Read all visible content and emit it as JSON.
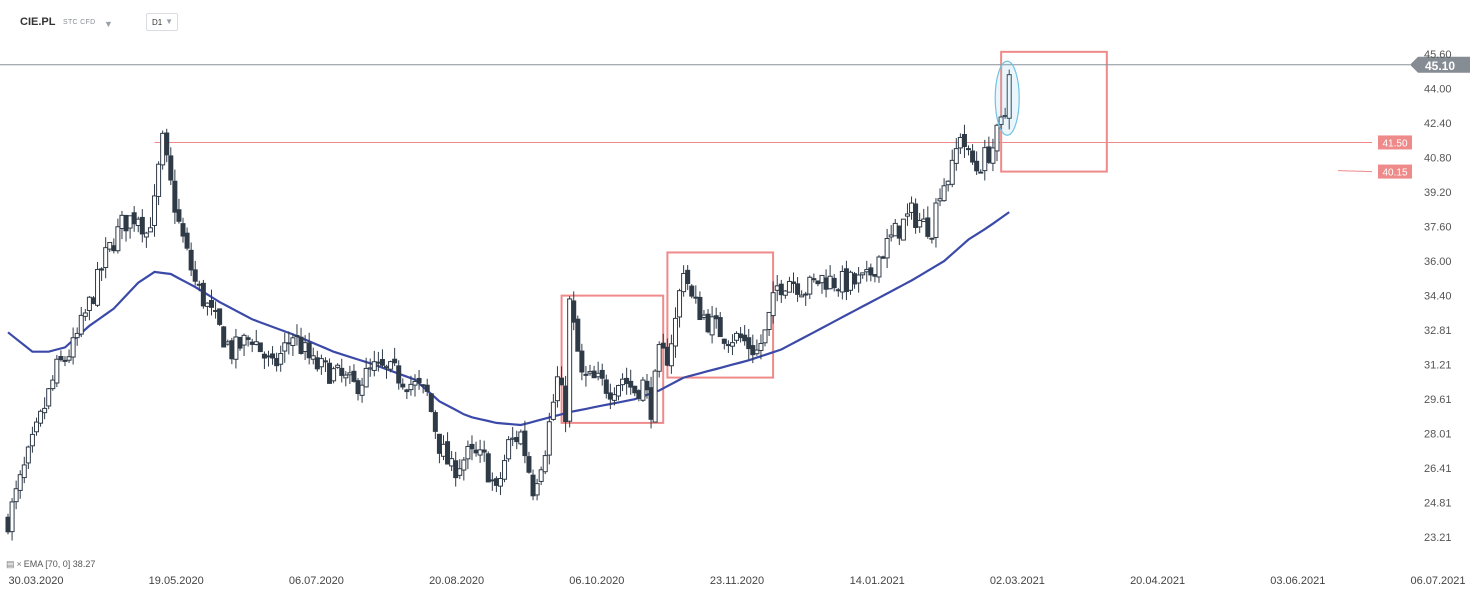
{
  "toolbar": {
    "symbol": "CIE.PL",
    "instrument_type": "STC CFD",
    "timeframe": "D1"
  },
  "indicator_legend": "EMA [70, 0] 38.27",
  "colors": {
    "candle": "#2f3a47",
    "ema": "#3b4aa8",
    "annotation": "#ef8a8a",
    "annotation_label_bg": "#ef8a8a",
    "ellipse": "#6fc3e3",
    "price_line": "#8a8f98",
    "price_tag_bg": "#868c94"
  },
  "chart_data": {
    "type": "candlestick",
    "timeframe": "D1",
    "x_tick_labels": [
      "30.03.2020",
      "19.05.2020",
      "06.07.2020",
      "20.08.2020",
      "06.10.2020",
      "23.11.2020",
      "14.01.2021",
      "02.03.2021",
      "20.04.2021",
      "03.06.2021",
      "06.07.2021"
    ],
    "y_tick_labels": [
      "45.60",
      "44.00",
      "42.40",
      "40.80",
      "39.20",
      "37.60",
      "36.00",
      "34.40",
      "32.81",
      "31.21",
      "29.61",
      "28.01",
      "26.41",
      "24.81",
      "23.21"
    ],
    "ylim": [
      23.21,
      45.6
    ],
    "last_price": 45.1,
    "last_price_label": "45.10",
    "horizontal_levels": [
      {
        "value": 41.5,
        "label": "41.50"
      },
      {
        "value": 40.15,
        "label": "40.15"
      }
    ],
    "ema": {
      "name": "EMA [70, 0]",
      "last_value": 38.27
    },
    "price_path": [
      [
        0,
        24.0
      ],
      [
        6,
        27.5
      ],
      [
        12,
        31.0
      ],
      [
        16,
        32.0
      ],
      [
        21,
        34.5
      ],
      [
        24,
        36.2
      ],
      [
        28,
        37.7
      ],
      [
        32,
        38.2
      ],
      [
        34,
        37.3
      ],
      [
        36,
        38.6
      ],
      [
        37,
        40.2
      ],
      [
        38,
        41.5
      ],
      [
        40,
        39.5
      ],
      [
        42,
        37.7
      ],
      [
        44,
        36.3
      ],
      [
        46,
        35.0
      ],
      [
        50,
        33.5
      ],
      [
        55,
        31.8
      ],
      [
        60,
        32.5
      ],
      [
        65,
        31.0
      ],
      [
        70,
        32.6
      ],
      [
        75,
        31.2
      ],
      [
        80,
        30.8
      ],
      [
        85,
        30.2
      ],
      [
        90,
        31.0
      ],
      [
        95,
        30.8
      ],
      [
        100,
        30.2
      ],
      [
        103,
        29.8
      ],
      [
        106,
        27.5
      ],
      [
        109,
        26.3
      ],
      [
        113,
        27.0
      ],
      [
        117,
        26.8
      ],
      [
        120,
        25.2
      ],
      [
        123,
        27.5
      ],
      [
        126,
        28.0
      ],
      [
        129,
        25.5
      ],
      [
        132,
        27.4
      ],
      [
        135,
        30.5
      ],
      [
        137,
        29.0
      ],
      [
        138,
        34.0
      ],
      [
        141,
        30.6
      ],
      [
        145,
        30.4
      ],
      [
        148,
        30.1
      ],
      [
        151,
        30.6
      ],
      [
        154,
        30.0
      ],
      [
        156,
        30.3
      ],
      [
        158,
        29.2
      ],
      [
        160,
        31.6
      ],
      [
        162,
        31.6
      ],
      [
        164,
        33.2
      ],
      [
        166,
        35.8
      ],
      [
        168,
        34.2
      ],
      [
        172,
        33.2
      ],
      [
        176,
        32.6
      ],
      [
        180,
        32.4
      ],
      [
        184,
        31.8
      ],
      [
        186,
        32.6
      ],
      [
        189,
        34.8
      ],
      [
        192,
        35.2
      ],
      [
        196,
        34.7
      ],
      [
        200,
        35.2
      ],
      [
        204,
        35.0
      ],
      [
        208,
        35.0
      ],
      [
        211,
        35.1
      ],
      [
        214,
        36.2
      ],
      [
        218,
        37.3
      ],
      [
        222,
        38.2
      ],
      [
        225,
        37.7
      ],
      [
        227,
        37.6
      ],
      [
        229,
        39.4
      ],
      [
        232,
        40.2
      ],
      [
        234,
        42.0
      ],
      [
        236,
        40.8
      ],
      [
        238,
        40.3
      ],
      [
        240,
        40.8
      ],
      [
        242,
        41.3
      ],
      [
        244,
        42.3
      ],
      [
        245,
        42.8
      ],
      [
        246,
        45.1
      ]
    ],
    "ema_path": [
      [
        0,
        32.7
      ],
      [
        6,
        31.8
      ],
      [
        10,
        31.8
      ],
      [
        14,
        32.0
      ],
      [
        20,
        33.0
      ],
      [
        26,
        33.8
      ],
      [
        32,
        35.0
      ],
      [
        36,
        35.5
      ],
      [
        40,
        35.4
      ],
      [
        46,
        34.8
      ],
      [
        52,
        34.1
      ],
      [
        60,
        33.3
      ],
      [
        70,
        32.6
      ],
      [
        80,
        31.8
      ],
      [
        90,
        31.2
      ],
      [
        100,
        30.5
      ],
      [
        106,
        29.5
      ],
      [
        113,
        28.8
      ],
      [
        120,
        28.5
      ],
      [
        126,
        28.4
      ],
      [
        130,
        28.6
      ],
      [
        138,
        29.0
      ],
      [
        146,
        29.3
      ],
      [
        154,
        29.6
      ],
      [
        160,
        30.0
      ],
      [
        166,
        30.6
      ],
      [
        174,
        31.0
      ],
      [
        182,
        31.4
      ],
      [
        190,
        31.9
      ],
      [
        198,
        32.7
      ],
      [
        206,
        33.5
      ],
      [
        214,
        34.3
      ],
      [
        222,
        35.1
      ],
      [
        230,
        36.0
      ],
      [
        236,
        37.0
      ],
      [
        241,
        37.6
      ],
      [
        246,
        38.27
      ]
    ]
  }
}
